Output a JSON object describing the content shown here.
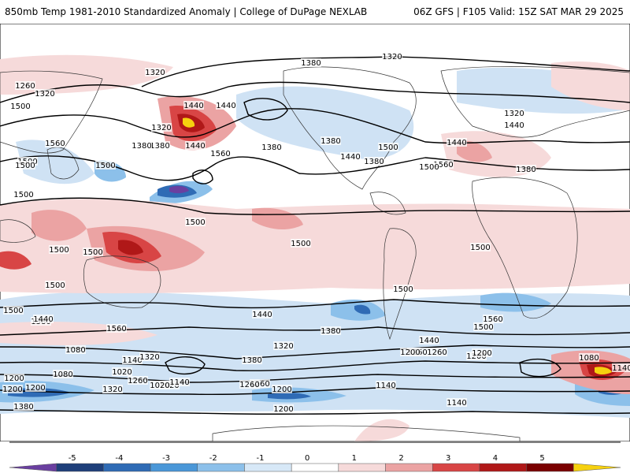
{
  "header": {
    "left_title": "850mb Temp 1981-2010 Standardized Anomaly | College of DuPage NEXLAB",
    "right_title": "06Z GFS | F105 Valid: 15Z SAT MAR 29 2025"
  },
  "colorbar": {
    "ticks": [
      "-5",
      "-4",
      "-3",
      "-2",
      "-1",
      "0",
      "1",
      "2",
      "3",
      "4",
      "5"
    ],
    "colors": [
      "#6a3fa0",
      "#1f3f7a",
      "#2f6bb5",
      "#4a97d8",
      "#8cc0ea",
      "#d7e8f7",
      "#ffffff",
      "#f6dada",
      "#eba3a3",
      "#d84545",
      "#b01818",
      "#7a0000",
      "#f6d10f"
    ]
  },
  "contour_labels": [
    "1320",
    "1380",
    "1320",
    "1260",
    "1320",
    "1440",
    "1320",
    "1380",
    "1440",
    "1500",
    "1560",
    "1500",
    "1380",
    "1560",
    "1380",
    "1500",
    "1440",
    "1500",
    "1380",
    "1440",
    "1380",
    "1500",
    "1560",
    "1320",
    "1440",
    "1440",
    "1380",
    "1500",
    "1500",
    "1500",
    "1500",
    "1500",
    "1500",
    "1500",
    "1500",
    "1500",
    "1440",
    "1380",
    "1560",
    "1500",
    "1440",
    "1560",
    "1500",
    "1260",
    "1200",
    "1320",
    "1380",
    "1080",
    "1140",
    "1020",
    "1320",
    "1380",
    "1440",
    "1260",
    "1200",
    "1080",
    "1140",
    "1200",
    "1260",
    "1320",
    "1200",
    "1260",
    "1200",
    "1020",
    "1260",
    "1200",
    "1140",
    "1200",
    "1140",
    "1020",
    "1080",
    "1140",
    "1200",
    "1380"
  ]
}
